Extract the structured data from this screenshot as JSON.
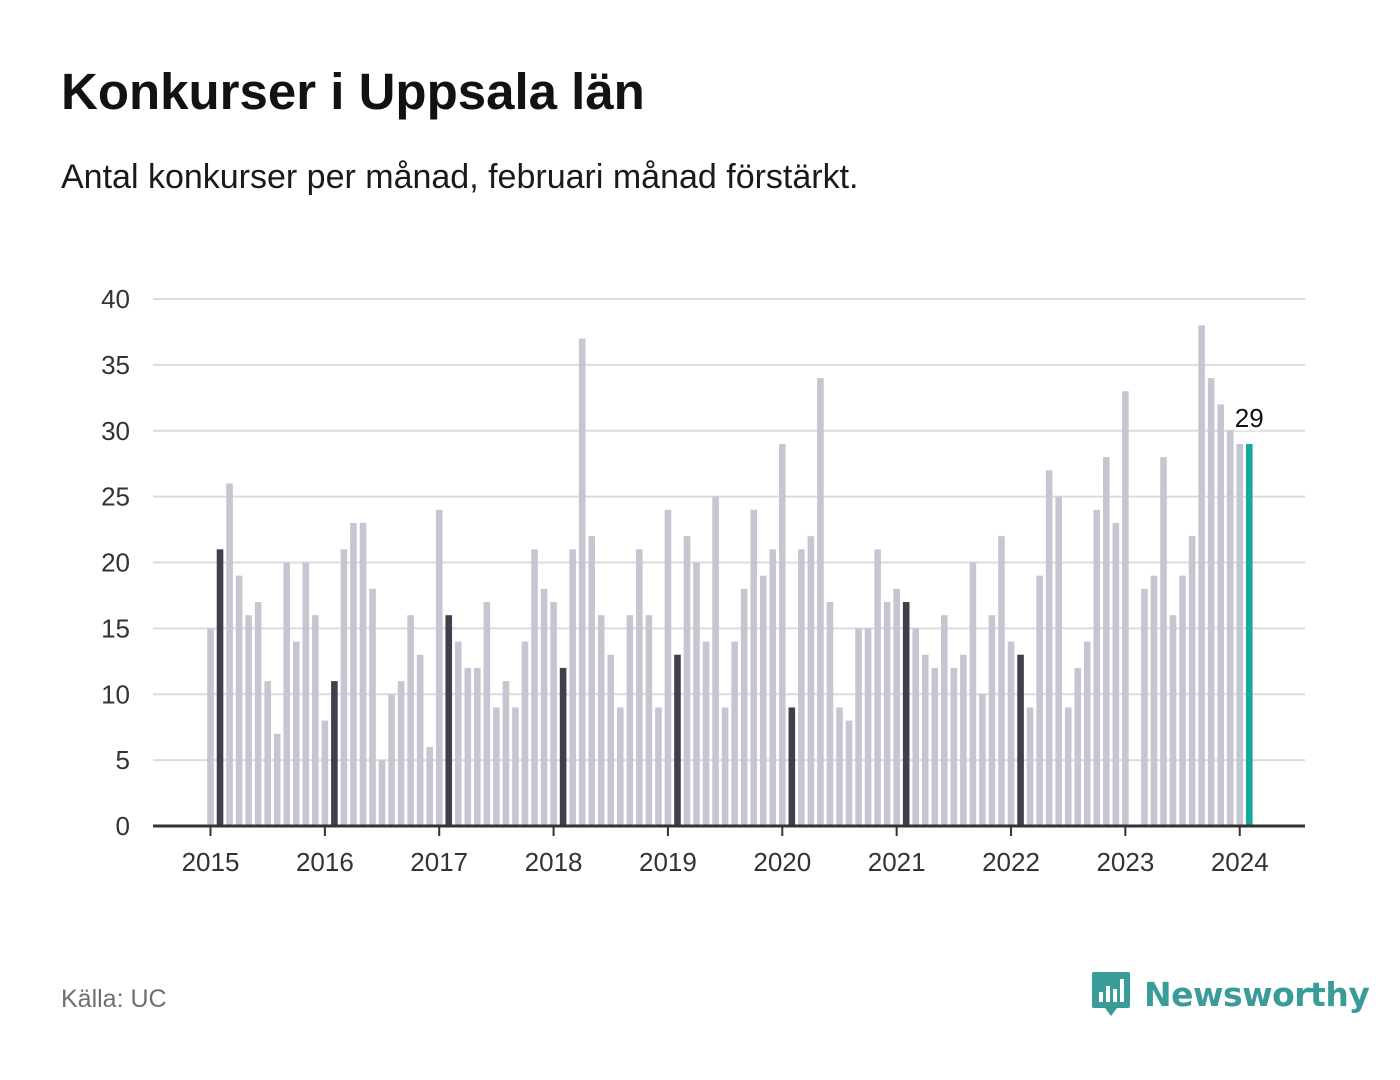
{
  "header": {
    "title": "Konkurser i Uppsala län",
    "subtitle": "Antal konkurser per månad, februari månad förstärkt."
  },
  "footer": {
    "source": "Källa: UC",
    "brand": "Newsworthy"
  },
  "colors": {
    "regular_bar": "#c6c6d2",
    "february_bar": "#3f3f4e",
    "latest_bar": "#17a89e",
    "grid": "#dcdcdc",
    "axis": "#333333",
    "brand": "#3a9c98"
  },
  "icons": {
    "brand_logo": "bar-chart-speech-bubble-icon"
  },
  "chart_data": {
    "type": "bar",
    "title": "Konkurser i Uppsala län",
    "subtitle": "Antal konkurser per månad, februari månad förstärkt.",
    "start_month": "2015-01",
    "end_month": "2024-02",
    "values": [
      15,
      21,
      26,
      19,
      16,
      17,
      11,
      7,
      20,
      14,
      20,
      16,
      8,
      11,
      21,
      23,
      23,
      18,
      5,
      10,
      11,
      16,
      13,
      6,
      24,
      16,
      14,
      12,
      12,
      17,
      9,
      11,
      9,
      14,
      21,
      18,
      17,
      12,
      21,
      37,
      22,
      16,
      13,
      9,
      16,
      21,
      16,
      9,
      24,
      13,
      22,
      20,
      14,
      25,
      9,
      14,
      18,
      24,
      19,
      21,
      29,
      9,
      21,
      22,
      34,
      17,
      9,
      8,
      15,
      15,
      21,
      17,
      18,
      17,
      15,
      13,
      12,
      16,
      12,
      13,
      20,
      10,
      16,
      22,
      14,
      13,
      9,
      19,
      27,
      25,
      9,
      12,
      14,
      24,
      28,
      23,
      33,
      null,
      18,
      19,
      28,
      16,
      19,
      22,
      38,
      34,
      32,
      30,
      29,
      29
    ],
    "highlight": {
      "february": "dark bars",
      "latest": {
        "month": "2024-02",
        "value": 29,
        "label": "29"
      }
    },
    "xticks": [
      "2015",
      "2016",
      "2017",
      "2018",
      "2019",
      "2020",
      "2021",
      "2022",
      "2023",
      "2024"
    ],
    "yticks": [
      0,
      5,
      10,
      15,
      20,
      25,
      30,
      35,
      40
    ],
    "ylim": [
      0,
      40
    ],
    "xlabel": "",
    "ylabel": "",
    "grid": true,
    "legend": "none"
  }
}
